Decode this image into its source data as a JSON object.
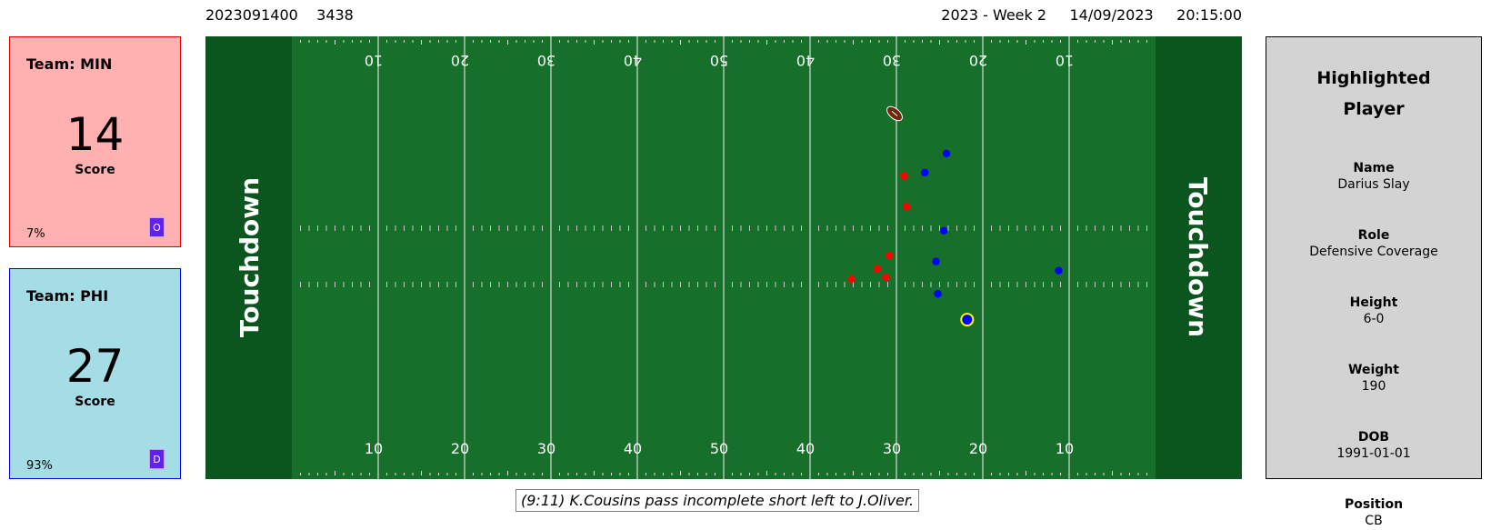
{
  "header": {
    "game_id": "2023091400",
    "play_id": "3438",
    "season_week": "2023 - Week 2",
    "date": "14/09/2023",
    "time": "20:15:00"
  },
  "teams": [
    {
      "name": "Team: MIN",
      "score": "14",
      "score_label": "Score",
      "win_prob": "7%",
      "possession": "O",
      "color": "#ffb0b0",
      "border": "#e00000"
    },
    {
      "name": "Team: PHI",
      "score": "27",
      "score_label": "Score",
      "win_prob": "93%",
      "possession": "D",
      "color": "#a5dde6",
      "border": "#0000e0"
    }
  ],
  "field": {
    "endzone_left_label": "Touchdown",
    "endzone_right_label": "Touchdown",
    "yard_numbers": [
      "10",
      "20",
      "30",
      "40",
      "50",
      "40",
      "30",
      "20",
      "10"
    ],
    "field_color": "#16702a",
    "endzone_color": "#0b561e",
    "offense_color": "#ff0000",
    "defense_color": "#0000ff",
    "highlight_color": "#ffff00",
    "ball_icon": "football-icon",
    "players": [
      {
        "team": "offense",
        "yard": 28.9,
        "lat": 36.5
      },
      {
        "team": "offense",
        "yard": 35.0,
        "lat": 24.1
      },
      {
        "team": "offense",
        "yard": 31.0,
        "lat": 24.3
      },
      {
        "team": "offense",
        "yard": 32.0,
        "lat": 25.3
      },
      {
        "team": "offense",
        "yard": 30.6,
        "lat": 26.9
      },
      {
        "team": "offense",
        "yard": 28.6,
        "lat": 32.8
      },
      {
        "team": "defense",
        "yard": 24.0,
        "lat": 39.2
      },
      {
        "team": "defense",
        "yard": 26.5,
        "lat": 36.9
      },
      {
        "team": "defense",
        "yard": 25.2,
        "lat": 26.2
      },
      {
        "team": "defense",
        "yard": 25.0,
        "lat": 22.3
      },
      {
        "team": "defense",
        "yard": 11.0,
        "lat": 25.1
      },
      {
        "team": "defense",
        "yard": 24.3,
        "lat": 29.9
      },
      {
        "team": "defense",
        "yard": 21.6,
        "lat": 19.2,
        "highlighted": true
      }
    ],
    "ball": {
      "yard": 30.0,
      "lat": 44.0
    }
  },
  "play_description": "(9:11) K.Cousins pass incomplete short left to J.Oliver.",
  "highlighted_player": {
    "title_line1": "Highlighted",
    "title_line2": "Player",
    "attributes": [
      {
        "label": "Name",
        "value": "Darius Slay"
      },
      {
        "label": "Role",
        "value": "Defensive Coverage"
      },
      {
        "label": "Height",
        "value": "6-0"
      },
      {
        "label": "Weight",
        "value": "190"
      },
      {
        "label": "DOB",
        "value": "1991-01-01"
      },
      {
        "label": "Position",
        "value": "CB"
      }
    ]
  }
}
